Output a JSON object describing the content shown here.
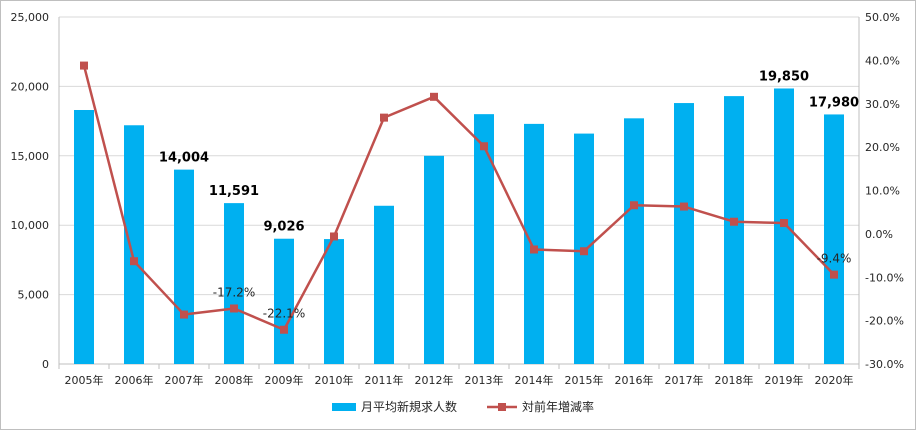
{
  "chart_data": {
    "type": "bar+line",
    "categories": [
      "2005年",
      "2006年",
      "2007年",
      "2008年",
      "2009年",
      "2010年",
      "2011年",
      "2012年",
      "2013年",
      "2014年",
      "2015年",
      "2016年",
      "2017年",
      "2018年",
      "2019年",
      "2020年"
    ],
    "series": [
      {
        "name": "月平均新規求人数",
        "type": "bar",
        "axis": "left",
        "color": "#00b0f0",
        "values": [
          18300,
          17200,
          14004,
          11591,
          9026,
          9000,
          11400,
          15000,
          18000,
          17300,
          16600,
          17700,
          18800,
          19300,
          19850,
          17980
        ],
        "data_labels": [
          "",
          "",
          "14,004",
          "11,591",
          "9,026",
          "",
          "",
          "",
          "",
          "",
          "",
          "",
          "",
          "",
          "19,850",
          "17,980"
        ]
      },
      {
        "name": "対前年増減率",
        "type": "line",
        "axis": "right",
        "color": "#c0504d",
        "values": [
          38.8,
          -6.3,
          -18.6,
          -17.2,
          -22.1,
          -0.6,
          26.8,
          31.6,
          20.2,
          -3.6,
          -4.0,
          6.6,
          6.3,
          2.8,
          2.5,
          -9.4
        ],
        "data_labels": [
          "",
          "",
          "",
          "-17.2%",
          "-22.1%",
          "",
          "",
          "",
          "",
          "",
          "",
          "",
          "",
          "",
          "",
          "-9.4%"
        ]
      }
    ],
    "y_left": {
      "lim": [
        0,
        25000
      ],
      "ticks": [
        0,
        5000,
        10000,
        15000,
        20000,
        25000
      ],
      "tick_labels": [
        "0",
        "5,000",
        "10,000",
        "15,000",
        "20,000",
        "25,000"
      ]
    },
    "y_right": {
      "lim": [
        -30,
        50
      ],
      "ticks": [
        -30,
        -20,
        -10,
        0,
        10,
        20,
        30,
        40,
        50
      ],
      "tick_labels": [
        "-30.0%",
        "-20.0%",
        "-10.0%",
        "0.0%",
        "10.0%",
        "20.0%",
        "30.0%",
        "40.0%",
        "50.0%"
      ]
    },
    "grid": "horizontal",
    "legend_position": "bottom"
  }
}
